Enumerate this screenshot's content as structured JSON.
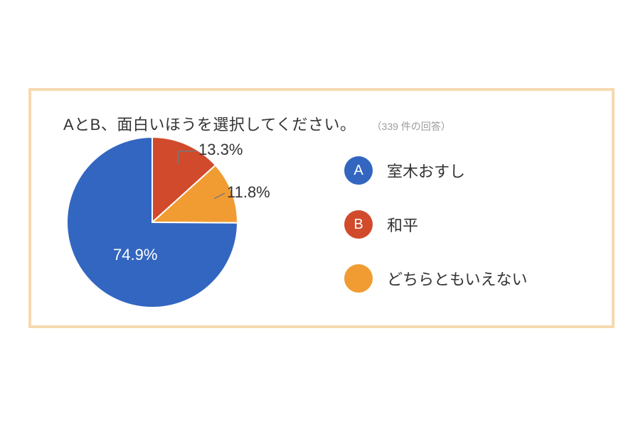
{
  "frame": {
    "border_color": "#f6d9b0"
  },
  "header": {
    "title": "AとB、面白いほうを選択してください。",
    "subtitle": "（339 件の回答）",
    "subtitle_color": "#9c9c9c"
  },
  "chart": {
    "type": "pie",
    "radius": 120,
    "slices": [
      {
        "key": "A",
        "value": 74.9,
        "color": "#3266c0",
        "label": "74.9%"
      },
      {
        "key": "B",
        "value": 13.3,
        "color": "#d14a2c",
        "label": "13.3%"
      },
      {
        "key": "C",
        "value": 11.8,
        "color": "#f09c33",
        "label": "11.8%"
      }
    ],
    "label_A": "74.9%",
    "label_B": "13.3%",
    "label_C": "11.8%"
  },
  "legend": {
    "items": [
      {
        "badge": "A",
        "color": "#3266c0",
        "text": "室木おすし"
      },
      {
        "badge": "B",
        "color": "#d14a2c",
        "text": "和平"
      },
      {
        "badge": "",
        "color": "#f09c33",
        "text": "どちらともいえない"
      }
    ]
  }
}
